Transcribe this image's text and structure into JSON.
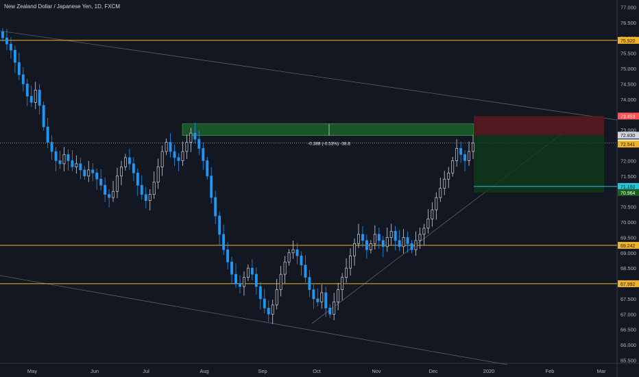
{
  "header": {
    "title": "New Zealand Dollar / Japanese Yen, 1D, FXCM"
  },
  "colors": {
    "background": "#131722",
    "up_candle": "#d1d4dc",
    "down_candle": "#2196f3",
    "horizontal_level": "#f0b429",
    "trend_line": "#5d606b",
    "profit_zone": "#1e5f2a",
    "profit_zone_dark": "#0f3a1a",
    "loss_zone": "#5c1a1f",
    "stop_label": "#ff5252",
    "target_label": "#1b5e20",
    "current_price_line": "#d1d4dc",
    "entry_line": "#26c6da"
  },
  "chart_data": {
    "type": "candlestick",
    "title": "New Zealand Dollar / Japanese Yen, 1D, FXCM",
    "x_ticks": [
      "May",
      "Jun",
      "Jul",
      "Aug",
      "Sep",
      "Oct",
      "Nov",
      "Dec",
      "2020",
      "Feb",
      "Mar"
    ],
    "y_ticks": [
      "77.000",
      "76.500",
      "76.000",
      "75.500",
      "75.000",
      "74.500",
      "74.000",
      "73.500",
      "73.000",
      "72.500",
      "72.000",
      "71.500",
      "71.000",
      "70.500",
      "70.000",
      "69.500",
      "69.000",
      "68.500",
      "68.000",
      "67.500",
      "67.000",
      "66.500",
      "66.000",
      "65.500"
    ],
    "ylim": [
      65.4,
      77.1
    ],
    "horizontal_levels": [
      75.92,
      69.242,
      67.992
    ],
    "price_labels": [
      {
        "value": "75.920",
        "kind": "level"
      },
      {
        "value": "73.453",
        "kind": "stop"
      },
      {
        "value": "72.830",
        "kind": "plain"
      },
      {
        "value": "72.581",
        "kind": "current"
      },
      {
        "value": "72.541",
        "kind": "level"
      },
      {
        "value": "71.160",
        "kind": "entry"
      },
      {
        "value": "70.964",
        "kind": "target"
      },
      {
        "value": "69.242",
        "kind": "level"
      },
      {
        "value": "67.992",
        "kind": "level"
      }
    ],
    "measure_label": "-0.388 (-0.53%) -38.8",
    "position": {
      "entry": 71.16,
      "stop": 73.453,
      "target": 70.964,
      "type": "short"
    },
    "ohlc_closes": [
      76.0,
      75.8,
      75.6,
      75.2,
      74.8,
      74.5,
      74.1,
      73.9,
      74.3,
      73.8,
      73.1,
      72.6,
      72.3,
      72.0,
      71.9,
      72.2,
      72.0,
      71.8,
      71.9,
      71.7,
      71.5,
      71.7,
      71.6,
      71.4,
      71.2,
      70.9,
      70.8,
      71.0,
      71.5,
      71.8,
      72.1,
      71.9,
      71.6,
      71.2,
      70.9,
      70.7,
      70.9,
      71.3,
      71.8,
      72.3,
      72.6,
      72.3,
      72.1,
      72.0,
      72.3,
      72.6,
      72.9,
      72.7,
      72.4,
      72.0,
      71.5,
      70.8,
      70.2,
      69.6,
      69.1,
      68.7,
      68.3,
      68.0,
      67.9,
      68.2,
      68.5,
      68.3,
      67.9,
      67.5,
      67.2,
      67.0,
      67.3,
      67.8,
      68.3,
      68.7,
      69.0,
      69.1,
      68.9,
      68.6,
      68.2,
      67.8,
      67.5,
      67.4,
      67.7,
      67.2,
      67.0,
      67.4,
      67.8,
      68.2,
      68.5,
      68.9,
      69.3,
      69.6,
      69.4,
      69.1,
      69.3,
      69.6,
      69.4,
      69.2,
      69.5,
      69.7,
      69.4,
      69.2,
      69.5,
      69.3,
      69.1,
      69.4,
      69.6,
      69.8,
      70.1,
      70.4,
      70.8,
      71.1,
      71.4,
      71.6,
      72.0,
      72.4,
      72.2,
      72.0,
      72.3,
      72.58
    ]
  }
}
